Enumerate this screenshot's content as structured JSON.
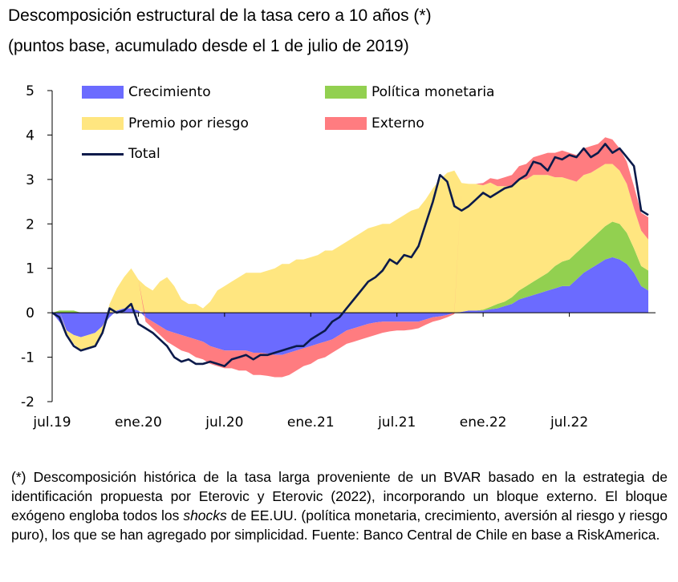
{
  "title": "Descomposición estructural de la tasa cero a 10 años (*)",
  "subtitle": "(puntos base, acumulado desde el 1 de julio de 2019)",
  "legend": {
    "crecimiento": "Crecimiento",
    "politica": "Política monetaria",
    "premio": "Premio por riesgo",
    "externo": "Externo",
    "total": "Total"
  },
  "footnote": {
    "part1": "(*) Descomposición histórica de la tasa larga proveniente de un BVAR basado en la estrategia de identificación propuesta por Eterovic y Eterovic (2022), incorporando un bloque externo. El bloque exógeno engloba todos los ",
    "italic": "shocks",
    "part2": " de EE.UU. (política monetaria, crecimiento, aversión al riesgo y riesgo puro), los que se han agregado por simplicidad. Fuente: Banco Central de Chile en base a RiskAmerica."
  },
  "chart_data": {
    "type": "area",
    "stacked": true,
    "y_ticks": [
      "5",
      "4",
      "3",
      "2",
      "1",
      "0",
      "-1",
      "-2"
    ],
    "ylim": [
      -2,
      5
    ],
    "x_ticks": [
      {
        "label": "jul.19",
        "x": 0
      },
      {
        "label": "ene.20",
        "x": 6
      },
      {
        "label": "jul.20",
        "x": 12
      },
      {
        "label": "ene.21",
        "x": 18
      },
      {
        "label": "jul.21",
        "x": 24
      },
      {
        "label": "ene.22",
        "x": 30
      },
      {
        "label": "jul.22",
        "x": 36
      }
    ],
    "xlim": [
      0,
      42
    ],
    "x_unit": "months since jul.19",
    "x": [
      0,
      0.5,
      1,
      1.5,
      2,
      2.5,
      3,
      3.5,
      4,
      4.5,
      5,
      5.5,
      6,
      6.5,
      7,
      7.5,
      8,
      8.5,
      9,
      9.5,
      10,
      10.5,
      11,
      11.5,
      12,
      12.5,
      13,
      13.5,
      14,
      14.5,
      15,
      15.5,
      16,
      16.5,
      17,
      17.5,
      18,
      18.5,
      19,
      19.5,
      20,
      20.5,
      21,
      21.5,
      22,
      22.5,
      23,
      23.5,
      24,
      24.5,
      25,
      25.5,
      26,
      26.5,
      27,
      27.5,
      28,
      28.5,
      29,
      29.5,
      30,
      30.5,
      31,
      31.5,
      32,
      32.5,
      33,
      33.5,
      34,
      34.5,
      35,
      35.5,
      36,
      36.5,
      37,
      37.5,
      38,
      38.5,
      39,
      39.5,
      40,
      40.5,
      41,
      41.5
    ],
    "series": [
      {
        "name": "Crecimiento",
        "color": "#6b6bff",
        "values": [
          0,
          -0.2,
          -0.4,
          -0.5,
          -0.55,
          -0.5,
          -0.45,
          -0.3,
          -0.1,
          0.05,
          0.1,
          0.1,
          0.05,
          -0.1,
          -0.2,
          -0.3,
          -0.4,
          -0.45,
          -0.5,
          -0.55,
          -0.6,
          -0.65,
          -0.75,
          -0.8,
          -0.85,
          -0.85,
          -0.85,
          -0.85,
          -0.9,
          -0.9,
          -0.92,
          -0.95,
          -0.95,
          -0.9,
          -0.85,
          -0.8,
          -0.75,
          -0.7,
          -0.65,
          -0.6,
          -0.5,
          -0.4,
          -0.35,
          -0.3,
          -0.25,
          -0.22,
          -0.2,
          -0.2,
          -0.2,
          -0.2,
          -0.2,
          -0.2,
          -0.15,
          -0.1,
          -0.08,
          -0.05,
          0,
          0.02,
          0.05,
          0.05,
          0.05,
          0.08,
          0.1,
          0.15,
          0.2,
          0.3,
          0.35,
          0.4,
          0.45,
          0.5,
          0.55,
          0.6,
          0.6,
          0.75,
          0.9,
          1.0,
          1.1,
          1.2,
          1.25,
          1.2,
          1.1,
          0.9,
          0.6,
          0.5
        ]
      },
      {
        "name": "Política monetaria",
        "color": "#92d050",
        "values": [
          0,
          0.05,
          0.05,
          0.05,
          0,
          0,
          0,
          0,
          0,
          0,
          0,
          0,
          0,
          0,
          0,
          0,
          0,
          0,
          0,
          0,
          0,
          0,
          0,
          0,
          0,
          0,
          0,
          0,
          0,
          0,
          0,
          0,
          0,
          0,
          0,
          0,
          0,
          0,
          0,
          0,
          0,
          0,
          0,
          0,
          0,
          0,
          0,
          0,
          0,
          0,
          0,
          0,
          0,
          0,
          0,
          0,
          0,
          0,
          0,
          0,
          0.02,
          0.05,
          0.1,
          0.1,
          0.15,
          0.2,
          0.25,
          0.3,
          0.35,
          0.4,
          0.5,
          0.55,
          0.6,
          0.6,
          0.6,
          0.65,
          0.7,
          0.75,
          0.8,
          0.8,
          0.7,
          0.55,
          0.45,
          0.45
        ]
      },
      {
        "name": "Premio por riesgo",
        "color": "#ffe680",
        "values": [
          0,
          0,
          -0.05,
          -0.2,
          -0.3,
          -0.3,
          -0.3,
          -0.1,
          0.2,
          0.5,
          0.7,
          0.9,
          0.7,
          0.6,
          0.5,
          0.7,
          0.8,
          0.6,
          0.3,
          0.2,
          0.2,
          0.1,
          0.25,
          0.5,
          0.6,
          0.7,
          0.8,
          0.9,
          0.9,
          0.9,
          0.95,
          1.0,
          1.1,
          1.1,
          1.2,
          1.2,
          1.25,
          1.3,
          1.4,
          1.4,
          1.5,
          1.6,
          1.7,
          1.8,
          1.9,
          1.95,
          2.0,
          2.0,
          2.1,
          2.2,
          2.3,
          2.35,
          2.55,
          2.8,
          3.0,
          3.15,
          3.2,
          2.9,
          2.85,
          2.85,
          2.8,
          2.8,
          2.65,
          2.6,
          2.5,
          2.5,
          2.4,
          2.4,
          2.3,
          2.2,
          2.0,
          1.9,
          1.8,
          1.6,
          1.6,
          1.5,
          1.45,
          1.4,
          1.3,
          1.2,
          1.1,
          0.9,
          0.8,
          0.7
        ]
      },
      {
        "name": "Externo",
        "color": "#ff7c80",
        "values": [
          0,
          0,
          0,
          0,
          0,
          0,
          0,
          0,
          0,
          0,
          0,
          0,
          0,
          -0.1,
          -0.15,
          -0.2,
          -0.25,
          -0.3,
          -0.35,
          -0.35,
          -0.4,
          -0.4,
          -0.4,
          -0.4,
          -0.4,
          -0.4,
          -0.45,
          -0.45,
          -0.5,
          -0.5,
          -0.5,
          -0.5,
          -0.5,
          -0.5,
          -0.45,
          -0.4,
          -0.4,
          -0.35,
          -0.35,
          -0.3,
          -0.3,
          -0.3,
          -0.3,
          -0.3,
          -0.3,
          -0.28,
          -0.25,
          -0.22,
          -0.2,
          -0.2,
          -0.18,
          -0.15,
          -0.12,
          -0.1,
          -0.08,
          -0.05,
          -0.03,
          0,
          0,
          0,
          0.05,
          0.1,
          0.15,
          0.2,
          0.25,
          0.3,
          0.35,
          0.4,
          0.45,
          0.5,
          0.55,
          0.6,
          0.6,
          0.6,
          0.6,
          0.6,
          0.55,
          0.6,
          0.55,
          0.5,
          0.5,
          0.5,
          0.4,
          0.5
        ]
      }
    ],
    "total": {
      "name": "Total",
      "color": "#0b1a4a",
      "values": [
        0,
        -0.1,
        -0.5,
        -0.75,
        -0.85,
        -0.8,
        -0.75,
        -0.45,
        0.1,
        0.0,
        0.05,
        0.2,
        -0.25,
        -0.35,
        -0.45,
        -0.6,
        -0.75,
        -1.0,
        -1.1,
        -1.05,
        -1.15,
        -1.15,
        -1.1,
        -1.15,
        -1.2,
        -1.05,
        -1.0,
        -0.95,
        -1.05,
        -0.95,
        -0.95,
        -0.9,
        -0.85,
        -0.8,
        -0.75,
        -0.75,
        -0.6,
        -0.5,
        -0.4,
        -0.2,
        -0.1,
        0.1,
        0.3,
        0.5,
        0.7,
        0.8,
        0.95,
        1.2,
        1.1,
        1.3,
        1.25,
        1.5,
        2.0,
        2.5,
        3.1,
        2.95,
        2.4,
        2.3,
        2.4,
        2.55,
        2.7,
        2.6,
        2.7,
        2.8,
        2.85,
        3.0,
        3.1,
        3.4,
        3.35,
        3.2,
        3.5,
        3.45,
        3.55,
        3.5,
        3.7,
        3.5,
        3.6,
        3.8,
        3.6,
        3.7,
        3.5,
        3.3,
        2.3,
        2.2
      ]
    }
  }
}
